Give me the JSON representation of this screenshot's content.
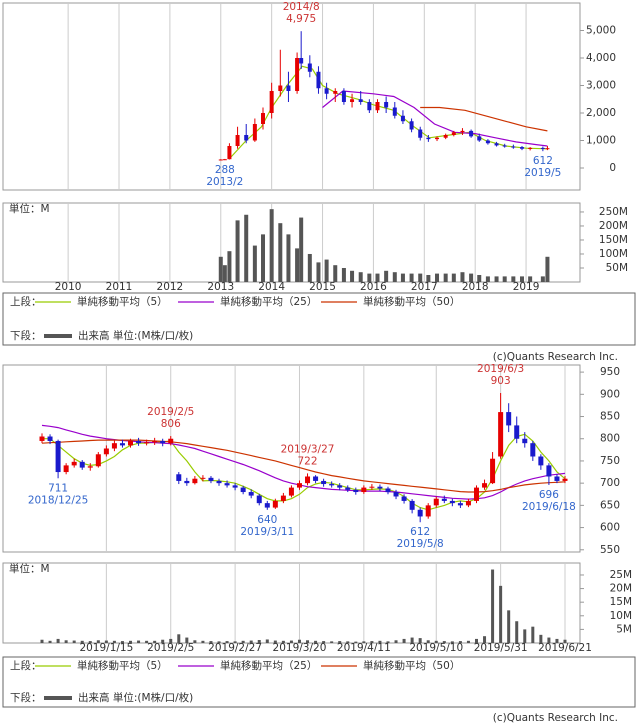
{
  "chart_data": [
    {
      "type": "candlestick",
      "x": [
        2013.0,
        2013.08,
        2013.17,
        2013.33,
        2013.5,
        2013.67,
        2013.83,
        2014.0,
        2014.17,
        2014.33,
        2014.5,
        2014.58,
        2014.75,
        2014.92,
        2015.08,
        2015.25,
        2015.42,
        2015.58,
        2015.75,
        2015.92,
        2016.08,
        2016.25,
        2016.42,
        2016.58,
        2016.75,
        2016.92,
        2017.08,
        2017.25,
        2017.42,
        2017.58,
        2017.75,
        2017.92,
        2018.08,
        2018.25,
        2018.42,
        2018.58,
        2018.75,
        2018.92,
        2019.08,
        2019.33,
        2019.42
      ],
      "open": [
        300,
        310,
        320,
        800,
        1200,
        1000,
        1600,
        2000,
        2800,
        3000,
        2800,
        4000,
        3800,
        3500,
        2900,
        2700,
        2800,
        2400,
        2500,
        2400,
        2100,
        2400,
        2200,
        1900,
        1700,
        1400,
        1100,
        1050,
        1100,
        1200,
        1300,
        1350,
        1150,
        1000,
        900,
        820,
        780,
        760,
        700,
        730,
        700
      ],
      "high": [
        320,
        330,
        900,
        1500,
        1600,
        1800,
        2200,
        3100,
        4300,
        3500,
        4200,
        4975,
        4100,
        3700,
        3100,
        2900,
        2900,
        2700,
        2800,
        2500,
        2500,
        2600,
        2400,
        2100,
        1800,
        1500,
        1200,
        1150,
        1250,
        1350,
        1450,
        1400,
        1250,
        1050,
        950,
        880,
        850,
        800,
        760,
        780,
        800
      ],
      "low": [
        290,
        288,
        310,
        700,
        900,
        950,
        1400,
        1800,
        2600,
        2400,
        2700,
        3600,
        3300,
        2700,
        2500,
        2400,
        2300,
        2200,
        2300,
        2000,
        2000,
        2000,
        1800,
        1600,
        1300,
        1000,
        950,
        980,
        1050,
        1150,
        1200,
        1100,
        950,
        850,
        780,
        740,
        700,
        650,
        640,
        612,
        650
      ],
      "close": [
        310,
        320,
        800,
        1200,
        1000,
        1600,
        2000,
        2800,
        3000,
        2800,
        4000,
        3800,
        3500,
        2900,
        2700,
        2800,
        2400,
        2500,
        2400,
        2100,
        2400,
        2200,
        1900,
        1700,
        1400,
        1100,
        1050,
        1100,
        1200,
        1300,
        1350,
        1150,
        1000,
        900,
        820,
        780,
        760,
        700,
        730,
        700,
        720
      ],
      "up_color": "#e60000",
      "down_color": "#1a1acc",
      "xlim": [
        2008.72,
        2020.06
      ],
      "xticks": [
        2010,
        2011,
        2012,
        2013,
        2014,
        2015,
        2016,
        2017,
        2018,
        2019
      ],
      "ylim": [
        -800,
        6000
      ],
      "yticks": [
        {
          "value": 5000,
          "label": "5,000"
        },
        {
          "value": 4000,
          "label": "4,000"
        },
        {
          "value": 3000,
          "label": "3,000"
        },
        {
          "value": 2000,
          "label": "2,000"
        },
        {
          "value": 1000,
          "label": "1,000"
        },
        0
      ],
      "series": [
        {
          "name": "単純移動平均（5）",
          "color": "#99cc00",
          "x": [
            2013.2,
            2013.5,
            2013.8,
            2014.0,
            2014.3,
            2014.6,
            2014.8,
            2015.0,
            2015.3,
            2015.7,
            2016.0,
            2016.4,
            2016.8,
            2017.1,
            2017.5,
            2017.9,
            2018.2,
            2018.6,
            2019.0,
            2019.42
          ],
          "values": [
            400,
            1000,
            1500,
            2200,
            3000,
            3700,
            3600,
            3000,
            2700,
            2500,
            2300,
            2100,
            1500,
            1100,
            1200,
            1300,
            1000,
            800,
            720,
            700
          ]
        },
        {
          "name": "単純移動平均（25）",
          "color": "#9900cc",
          "x": [
            2015.0,
            2015.4,
            2016.0,
            2016.4,
            2016.8,
            2017.2,
            2017.6,
            2018.0,
            2018.4,
            2018.8,
            2019.2,
            2019.42
          ],
          "values": [
            2200,
            2800,
            2700,
            2600,
            2200,
            1600,
            1300,
            1250,
            1100,
            950,
            850,
            800
          ]
        },
        {
          "name": "単純移動平均（50）",
          "color": "#cc3300",
          "x": [
            2016.92,
            2017.3,
            2017.8,
            2018.2,
            2018.6,
            2019.0,
            2019.42
          ],
          "values": [
            2200,
            2200,
            2100,
            1900,
            1700,
            1500,
            1350
          ]
        }
      ],
      "volume": {
        "unit_label": "単位：M",
        "color": "#555555",
        "values": [
          90,
          60,
          110,
          220,
          240,
          130,
          170,
          260,
          210,
          170,
          120,
          230,
          100,
          70,
          80,
          60,
          50,
          40,
          35,
          30,
          30,
          40,
          35,
          30,
          30,
          30,
          25,
          30,
          30,
          30,
          35,
          30,
          25,
          20,
          20,
          20,
          20,
          20,
          20,
          20,
          90
        ],
        "ylim": [
          0,
          282
        ],
        "yticks": [
          {
            "value": 250,
            "label": "250M"
          },
          {
            "value": 200,
            "label": "200M"
          },
          {
            "value": 150,
            "label": "150M"
          },
          {
            "value": 100,
            "label": "100M"
          },
          {
            "value": 50,
            "label": "50M"
          }
        ]
      },
      "annotations": [
        {
          "date": "2014/8",
          "value": 4975,
          "value_label": "4,975"
        },
        {
          "date": "2013/2",
          "value": 288
        },
        {
          "date": "2019/5",
          "value": 612
        }
      ],
      "legend": {
        "upper_label": "上段：",
        "lower_label": "下段：",
        "volume_label": "出来高 単位:(M株/口/枚)"
      },
      "copyright": "(c)Quants Research Inc."
    },
    {
      "type": "candlestick",
      "categories": [
        null,
        null,
        null,
        null,
        null,
        null,
        null,
        null,
        "2019/1/15",
        null,
        null,
        null,
        null,
        null,
        null,
        null,
        "2019/2/5",
        null,
        null,
        null,
        null,
        null,
        null,
        null,
        "2019/2/27",
        null,
        null,
        null,
        null,
        null,
        null,
        null,
        "2019/3/20",
        null,
        null,
        null,
        null,
        null,
        null,
        null,
        "2019/4/11",
        null,
        null,
        null,
        null,
        null,
        null,
        null,
        null,
        "2019/5/10",
        null,
        null,
        null,
        null,
        null,
        null,
        null,
        "2019/5/31",
        null,
        null,
        null,
        null,
        null,
        null,
        null,
        "2019/6/21"
      ],
      "open": [
        795,
        805,
        795,
        725,
        740,
        748,
        735,
        738,
        765,
        778,
        790,
        785,
        795,
        790,
        792,
        795,
        790,
        720,
        705,
        700,
        710,
        712,
        705,
        700,
        695,
        690,
        680,
        672,
        655,
        645,
        660,
        672,
        690,
        700,
        715,
        705,
        698,
        695,
        690,
        685,
        680,
        690,
        692,
        688,
        680,
        670,
        660,
        640,
        625,
        650,
        665,
        660,
        655,
        650,
        660,
        690,
        700,
        760,
        860,
        830,
        800,
        790,
        760,
        740,
        715,
        705
      ],
      "high": [
        812,
        810,
        798,
        745,
        755,
        752,
        745,
        770,
        785,
        796,
        798,
        800,
        802,
        798,
        802,
        800,
        806,
        725,
        712,
        716,
        718,
        716,
        710,
        706,
        700,
        694,
        686,
        676,
        660,
        665,
        678,
        695,
        706,
        722,
        718,
        710,
        704,
        700,
        695,
        690,
        695,
        698,
        697,
        692,
        685,
        675,
        664,
        645,
        655,
        670,
        672,
        665,
        660,
        665,
        695,
        708,
        770,
        903,
        880,
        850,
        815,
        795,
        765,
        745,
        720,
        716
      ],
      "low": [
        790,
        788,
        711,
        720,
        735,
        730,
        728,
        735,
        760,
        772,
        780,
        780,
        784,
        785,
        786,
        783,
        785,
        698,
        694,
        697,
        704,
        700,
        694,
        690,
        684,
        675,
        666,
        650,
        640,
        642,
        655,
        668,
        685,
        695,
        700,
        692,
        690,
        684,
        680,
        674,
        676,
        685,
        682,
        675,
        664,
        654,
        632,
        612,
        620,
        645,
        655,
        648,
        644,
        646,
        655,
        685,
        698,
        755,
        815,
        790,
        780,
        750,
        730,
        696,
        700,
        700
      ],
      "close": [
        805,
        795,
        725,
        740,
        748,
        735,
        738,
        765,
        778,
        790,
        785,
        795,
        790,
        792,
        795,
        790,
        800,
        705,
        700,
        710,
        712,
        705,
        700,
        695,
        690,
        680,
        672,
        655,
        645,
        660,
        672,
        690,
        700,
        715,
        705,
        698,
        695,
        690,
        685,
        680,
        690,
        692,
        688,
        680,
        670,
        660,
        640,
        625,
        650,
        665,
        660,
        655,
        650,
        660,
        690,
        700,
        755,
        860,
        830,
        800,
        790,
        760,
        740,
        715,
        705,
        710
      ],
      "up_color": "#e60000",
      "down_color": "#1a1acc",
      "ylim": [
        545,
        966
      ],
      "yticks": [
        950,
        900,
        850,
        800,
        750,
        700,
        650,
        600,
        550
      ],
      "series": [
        {
          "name": "単純移動平均（5）",
          "color": "#99cc00",
          "values": [
            800,
            800,
            785,
            770,
            755,
            745,
            740,
            742,
            750,
            760,
            775,
            785,
            790,
            790,
            792,
            793,
            795,
            770,
            750,
            725,
            705,
            706,
            705,
            703,
            700,
            693,
            685,
            675,
            665,
            660,
            660,
            665,
            675,
            690,
            698,
            702,
            700,
            695,
            690,
            685,
            685,
            686,
            687,
            686,
            680,
            670,
            655,
            645,
            640,
            645,
            650,
            657,
            660,
            658,
            665,
            680,
            710,
            750,
            785,
            805,
            810,
            795,
            770,
            750,
            725,
            710
          ]
        },
        {
          "name": "単純移動平均（25）",
          "color": "#9900cc",
          "values": [
            830,
            828,
            825,
            820,
            815,
            810,
            806,
            803,
            800,
            798,
            796,
            795,
            793,
            792,
            791,
            790,
            789,
            786,
            782,
            778,
            772,
            766,
            760,
            754,
            748,
            742,
            735,
            728,
            720,
            712,
            705,
            700,
            696,
            692,
            690,
            688,
            686,
            685,
            684,
            683,
            682,
            682,
            682,
            681,
            680,
            678,
            676,
            674,
            672,
            670,
            668,
            666,
            665,
            664,
            665,
            667,
            672,
            680,
            690,
            698,
            705,
            710,
            714,
            718,
            720,
            722
          ]
        },
        {
          "name": "単純移動平均（50）",
          "color": "#cc3300",
          "values": [
            790,
            791,
            792,
            793,
            794,
            795,
            796,
            797,
            797,
            797,
            797,
            797,
            797,
            796,
            795,
            794,
            793,
            791,
            789,
            786,
            783,
            780,
            777,
            774,
            770,
            766,
            762,
            758,
            754,
            750,
            745,
            740,
            735,
            730,
            725,
            721,
            717,
            714,
            711,
            708,
            705,
            703,
            701,
            699,
            697,
            695,
            693,
            691,
            689,
            687,
            685,
            683,
            681,
            680,
            680,
            681,
            683,
            686,
            690,
            693,
            696,
            698,
            700,
            701,
            702,
            703
          ]
        }
      ],
      "volume": {
        "unit_label": "単位：M",
        "color": "#555555",
        "values": [
          1.2,
          0.8,
          1.5,
          1.0,
          0.9,
          0.8,
          0.7,
          1.0,
          0.9,
          0.8,
          0.7,
          0.8,
          0.9,
          0.8,
          0.8,
          1.2,
          1.5,
          3.2,
          2.0,
          1.0,
          0.8,
          0.7,
          0.6,
          0.7,
          0.6,
          0.8,
          0.9,
          1.1,
          1.3,
          0.9,
          0.8,
          0.9,
          1.2,
          1.0,
          0.8,
          0.7,
          0.6,
          0.7,
          0.6,
          0.5,
          0.6,
          0.7,
          0.8,
          0.6,
          1.0,
          1.5,
          2.0,
          1.8,
          1.0,
          0.8,
          0.7,
          0.6,
          0.7,
          0.8,
          1.5,
          2.5,
          27.0,
          21.0,
          12.0,
          8.0,
          5.0,
          6.0,
          3.0,
          2.0,
          1.5,
          1.2
        ],
        "ylim": [
          0,
          29.4
        ],
        "yticks": [
          {
            "value": 25,
            "label": "25M"
          },
          {
            "value": 20,
            "label": "20M"
          },
          {
            "value": 15,
            "label": "15M"
          },
          {
            "value": 10,
            "label": "10M"
          },
          {
            "value": 5,
            "label": "5M"
          }
        ]
      },
      "annotations": [
        {
          "date": "2018/12/25",
          "value": 711
        },
        {
          "date": "2019/2/5",
          "value": 806
        },
        {
          "date": "2019/3/11",
          "value": 640
        },
        {
          "date": "2019/3/27",
          "value": 722
        },
        {
          "date": "2019/5/8",
          "value": 612
        },
        {
          "date": "2019/6/3",
          "value": 903
        },
        {
          "date": "2019/6/18",
          "value": 696
        }
      ],
      "legend": {
        "upper_label": "上段：",
        "lower_label": "下段：",
        "volume_label": "出来高 単位:(M株/口/枚)"
      },
      "copyright": "(c)Quants Research Inc."
    }
  ]
}
